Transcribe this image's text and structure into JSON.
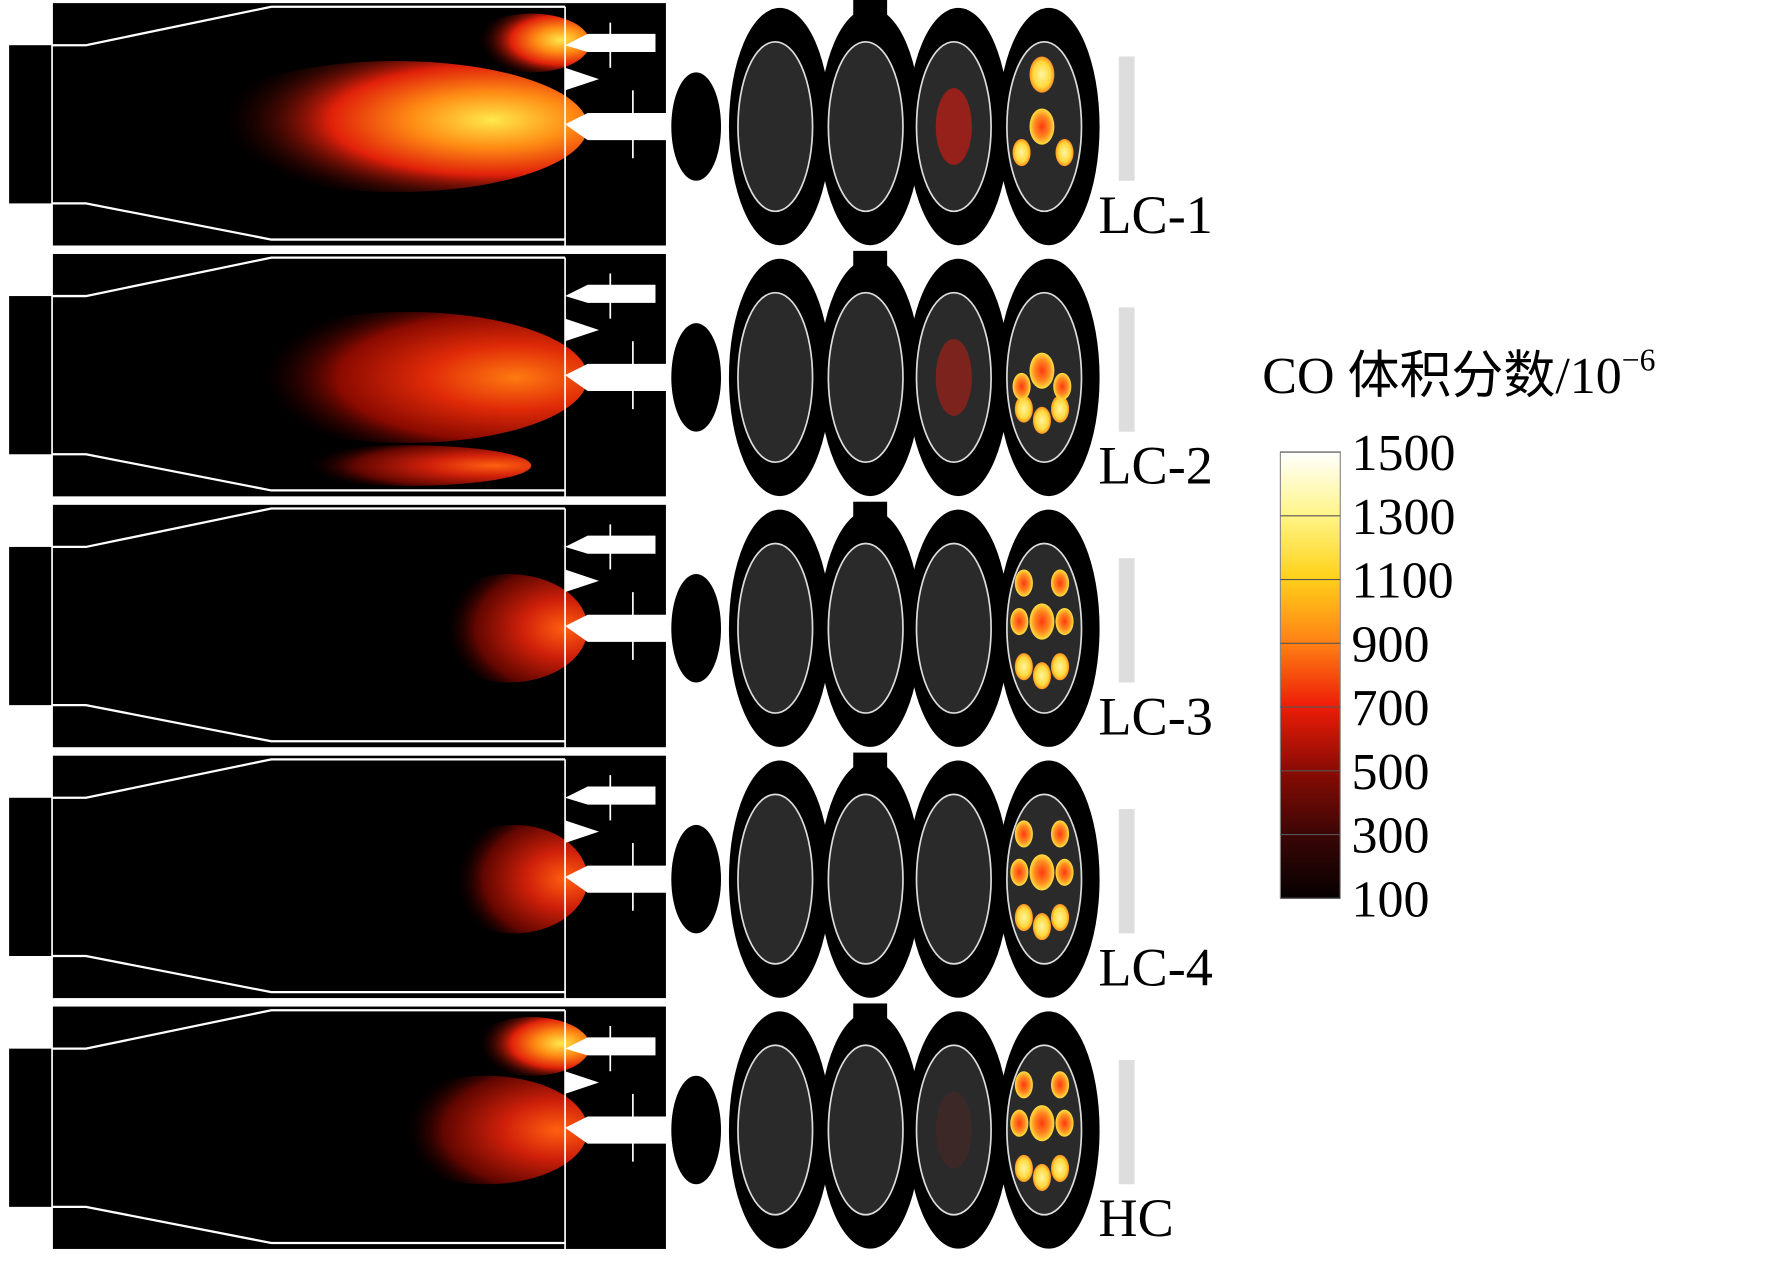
{
  "colorbar": {
    "title": "CO 体积分数/10",
    "title_sup": "−6",
    "range": [
      100,
      1500
    ],
    "ticks": [
      1500,
      1300,
      1100,
      900,
      700,
      500,
      300,
      100
    ]
  },
  "cases": [
    {
      "label": "LC-1"
    },
    {
      "label": "LC-2"
    },
    {
      "label": "LC-3"
    },
    {
      "label": "LC-4"
    },
    {
      "label": "HC"
    }
  ]
}
